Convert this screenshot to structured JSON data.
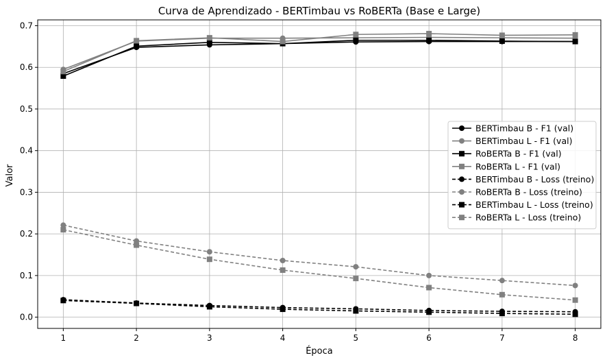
{
  "chart_data": {
    "type": "line",
    "title": "Curva de Aprendizado - BERTimbau vs RoBERTa (Base e Large)",
    "xlabel": "Época",
    "ylabel": "Valor",
    "x": [
      1,
      2,
      3,
      4,
      5,
      6,
      7,
      8
    ],
    "xlim": [
      0.65,
      8.35
    ],
    "ylim": [
      -0.027,
      0.714
    ],
    "xticks": [
      "1",
      "2",
      "3",
      "4",
      "5",
      "6",
      "7",
      "8"
    ],
    "yticks": [
      "0.0",
      "0.1",
      "0.2",
      "0.3",
      "0.4",
      "0.5",
      "0.6",
      "0.7"
    ],
    "grid": true,
    "legend_position": "center-right",
    "series": [
      {
        "name": "BERTimbau B - F1 (val)",
        "color": "#000000",
        "line": "solid",
        "marker": "circle",
        "values": [
          0.585,
          0.648,
          0.654,
          0.657,
          0.661,
          0.662,
          0.662,
          0.662
        ]
      },
      {
        "name": "BERTimbau L - F1 (val)",
        "color": "#808080",
        "line": "solid",
        "marker": "circle",
        "values": [
          0.595,
          0.663,
          0.67,
          0.67,
          0.671,
          0.672,
          0.671,
          0.67
        ]
      },
      {
        "name": "RoBERTa B - F1 (val)",
        "color": "#000000",
        "line": "solid",
        "marker": "square",
        "values": [
          0.579,
          0.651,
          0.66,
          0.657,
          0.665,
          0.665,
          0.663,
          0.662
        ]
      },
      {
        "name": "RoBERTa L - F1 (val)",
        "color": "#808080",
        "line": "solid",
        "marker": "square",
        "values": [
          0.59,
          0.664,
          0.671,
          0.662,
          0.679,
          0.681,
          0.677,
          0.678
        ]
      },
      {
        "name": "BERTimbau B - Loss (treino)",
        "color": "#000000",
        "line": "dashed",
        "marker": "circle",
        "values": [
          0.042,
          0.034,
          0.028,
          0.023,
          0.02,
          0.016,
          0.014,
          0.013
        ]
      },
      {
        "name": "RoBERTa B - Loss (treino)",
        "color": "#808080",
        "line": "dashed",
        "marker": "circle",
        "values": [
          0.221,
          0.183,
          0.157,
          0.136,
          0.121,
          0.1,
          0.088,
          0.076
        ]
      },
      {
        "name": "BERTimbau L - Loss (treino)",
        "color": "#000000",
        "line": "dashed",
        "marker": "square",
        "values": [
          0.04,
          0.033,
          0.025,
          0.019,
          0.015,
          0.012,
          0.009,
          0.007
        ]
      },
      {
        "name": "RoBERTa L - Loss (treino)",
        "color": "#808080",
        "line": "dashed",
        "marker": "square",
        "values": [
          0.21,
          0.173,
          0.139,
          0.113,
          0.093,
          0.071,
          0.054,
          0.041
        ]
      }
    ]
  }
}
